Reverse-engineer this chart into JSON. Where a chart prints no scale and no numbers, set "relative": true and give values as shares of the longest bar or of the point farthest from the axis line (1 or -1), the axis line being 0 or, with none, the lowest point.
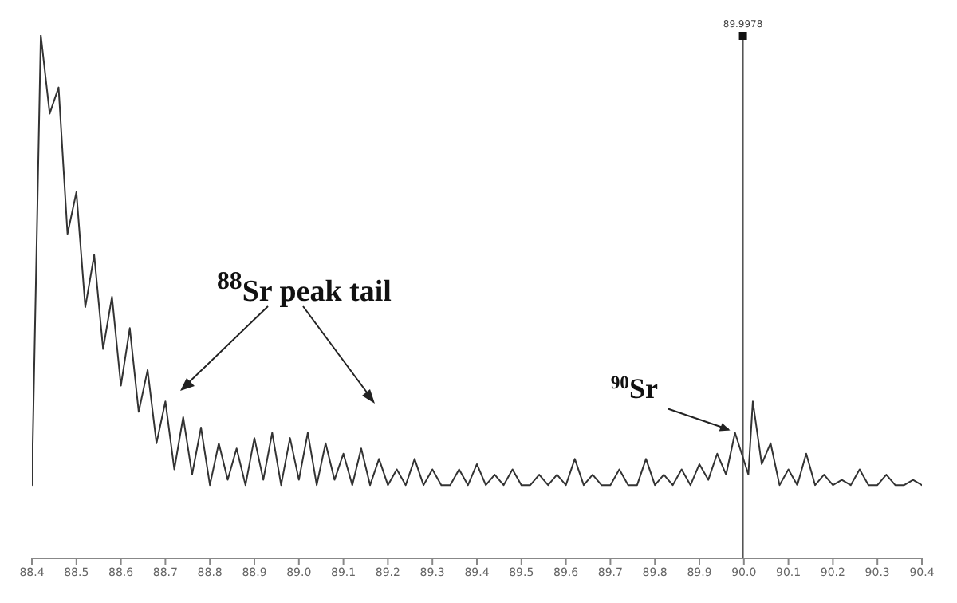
{
  "chart_data": {
    "type": "line",
    "relative": true,
    "x": [
      88.4,
      88.42,
      88.44,
      88.46,
      88.48,
      88.5,
      88.52,
      88.54,
      88.56,
      88.58,
      88.6,
      88.62,
      88.64,
      88.66,
      88.68,
      88.7,
      88.72,
      88.74,
      88.76,
      88.78,
      88.8,
      88.82,
      88.84,
      88.86,
      88.88,
      88.9,
      88.92,
      88.94,
      88.96,
      88.98,
      89.0,
      89.02,
      89.04,
      89.06,
      89.08,
      89.1,
      89.12,
      89.14,
      89.16,
      89.18,
      89.2,
      89.22,
      89.24,
      89.26,
      89.28,
      89.3,
      89.32,
      89.34,
      89.36,
      89.38,
      89.4,
      89.42,
      89.44,
      89.46,
      89.48,
      89.5,
      89.52,
      89.54,
      89.56,
      89.58,
      89.6,
      89.62,
      89.64,
      89.66,
      89.68,
      89.7,
      89.72,
      89.74,
      89.76,
      89.78,
      89.8,
      89.82,
      89.84,
      89.86,
      89.88,
      89.9,
      89.92,
      89.94,
      89.96,
      89.98,
      90.01,
      90.02,
      90.04,
      90.06,
      90.08,
      90.1,
      90.12,
      90.14,
      90.16,
      90.18,
      90.2,
      90.22,
      90.24,
      90.26,
      90.28,
      90.3,
      90.32,
      90.34,
      90.36,
      90.38,
      90.4
    ],
    "series": [
      {
        "color": "#333333",
        "values": [
          0.14,
          1,
          0.85,
          0.9,
          0.62,
          0.7,
          0.48,
          0.58,
          0.4,
          0.5,
          0.33,
          0.44,
          0.28,
          0.36,
          0.22,
          0.3,
          0.17,
          0.27,
          0.16,
          0.25,
          0.14,
          0.22,
          0.15,
          0.21,
          0.14,
          0.23,
          0.15,
          0.24,
          0.14,
          0.23,
          0.15,
          0.24,
          0.14,
          0.22,
          0.15,
          0.2,
          0.14,
          0.21,
          0.14,
          0.19,
          0.14,
          0.17,
          0.14,
          0.19,
          0.14,
          0.17,
          0.14,
          0.14,
          0.17,
          0.14,
          0.18,
          0.14,
          0.16,
          0.14,
          0.17,
          0.14,
          0.14,
          0.16,
          0.14,
          0.16,
          0.14,
          0.19,
          0.14,
          0.16,
          0.14,
          0.14,
          0.17,
          0.14,
          0.14,
          0.19,
          0.14,
          0.16,
          0.14,
          0.17,
          0.14,
          0.18,
          0.15,
          0.2,
          0.16,
          0.24,
          0.16,
          0.3,
          0.18,
          0.22,
          0.14,
          0.17,
          0.14,
          0.2,
          0.14,
          0.16,
          0.14,
          0.15,
          0.14,
          0.17,
          0.14,
          0.14,
          0.16,
          0.14,
          0.14,
          0.15,
          0.14
        ]
      }
    ],
    "xlim": [
      88.4,
      90.4
    ],
    "xticks": [
      88.4,
      88.5,
      88.6,
      88.7,
      88.8,
      88.9,
      {
        "value": 89,
        "label": "89.0"
      },
      89.1,
      89.2,
      89.3,
      89.4,
      89.5,
      89.6,
      89.7,
      89.8,
      89.9,
      {
        "value": 90,
        "label": "90.0"
      },
      90.1,
      90.2,
      90.3,
      90.4
    ],
    "ref_lines": [
      {
        "axis": "x",
        "value": 89.9978,
        "label": "89.9978"
      }
    ],
    "annotations": [
      "$^{88}$Sr peak tail",
      {
        "text": "$^{90}$Sr",
        "x": 89.98,
        "y": 0.24
      }
    ]
  }
}
